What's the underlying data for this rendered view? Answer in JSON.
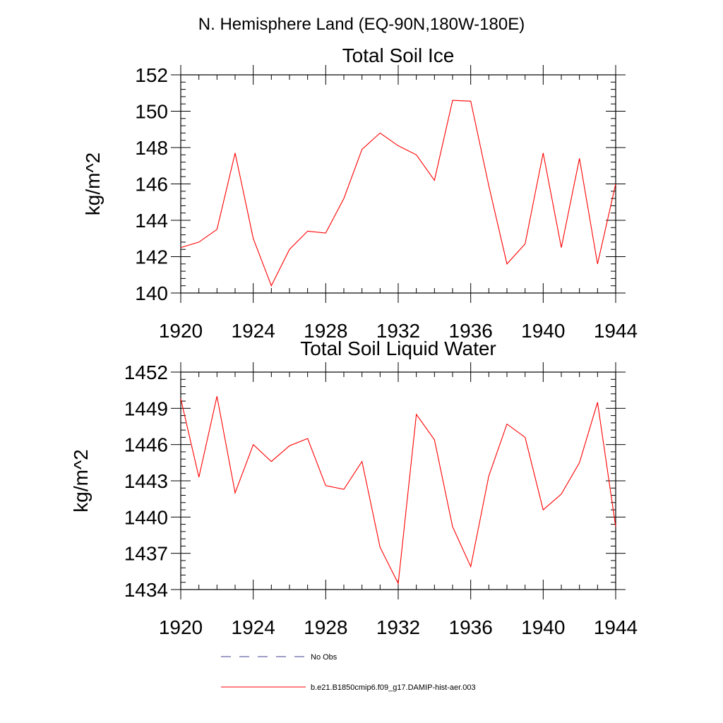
{
  "figure_title": "N. Hemisphere Land (EQ-90N,180W-180E)",
  "legend": {
    "no_obs_label": "No Obs",
    "model_label": "b.e21.B1850cmip6.f09_g17.DAMIP-hist-aer.003",
    "no_obs_color": "#3b3b8f",
    "model_color": "#ff0000"
  },
  "chart_data": [
    {
      "type": "line",
      "title": "Total Soil Ice",
      "xlabel": "",
      "ylabel": "kg/m^2",
      "xlim": [
        1920,
        1944
      ],
      "ylim": [
        140,
        152
      ],
      "x_ticks": [
        1920,
        1924,
        1928,
        1932,
        1936,
        1940,
        1944
      ],
      "y_ticks": [
        140,
        142,
        144,
        146,
        148,
        150,
        152
      ],
      "grid": false,
      "series": [
        {
          "name": "b.e21.B1850cmip6.f09_g17.DAMIP-hist-aer.003",
          "color": "#ff0000",
          "x": [
            1920,
            1921,
            1922,
            1923,
            1924,
            1925,
            1926,
            1927,
            1928,
            1929,
            1930,
            1931,
            1932,
            1933,
            1934,
            1935,
            1936,
            1937,
            1938,
            1939,
            1940,
            1941,
            1942,
            1943,
            1944
          ],
          "y": [
            142.5,
            142.8,
            143.5,
            147.7,
            143.0,
            140.4,
            142.4,
            143.4,
            143.3,
            145.2,
            147.9,
            148.8,
            148.1,
            147.6,
            146.2,
            150.6,
            150.55,
            145.9,
            141.6,
            142.7,
            147.7,
            142.5,
            147.4,
            141.6,
            146.0
          ]
        }
      ]
    },
    {
      "type": "line",
      "title": "Total Soil Liquid Water",
      "xlabel": "",
      "ylabel": "kg/m^2",
      "xlim": [
        1920,
        1944
      ],
      "ylim": [
        1434,
        1452
      ],
      "x_ticks": [
        1920,
        1924,
        1928,
        1932,
        1936,
        1940,
        1944
      ],
      "y_ticks": [
        1434,
        1437,
        1440,
        1443,
        1446,
        1449,
        1452
      ],
      "grid": false,
      "series": [
        {
          "name": "b.e21.B1850cmip6.f09_g17.DAMIP-hist-aer.003",
          "color": "#ff0000",
          "x": [
            1920,
            1921,
            1922,
            1923,
            1924,
            1925,
            1926,
            1927,
            1928,
            1929,
            1930,
            1931,
            1932,
            1933,
            1934,
            1935,
            1936,
            1937,
            1938,
            1939,
            1940,
            1941,
            1942,
            1943,
            1944
          ],
          "y": [
            1449.8,
            1443.3,
            1450.0,
            1442.0,
            1446.0,
            1444.6,
            1445.9,
            1446.5,
            1442.6,
            1442.3,
            1444.6,
            1437.5,
            1434.5,
            1448.5,
            1446.4,
            1439.2,
            1435.9,
            1443.4,
            1447.7,
            1446.6,
            1440.6,
            1441.9,
            1444.5,
            1449.5,
            1439.2
          ]
        }
      ]
    }
  ]
}
